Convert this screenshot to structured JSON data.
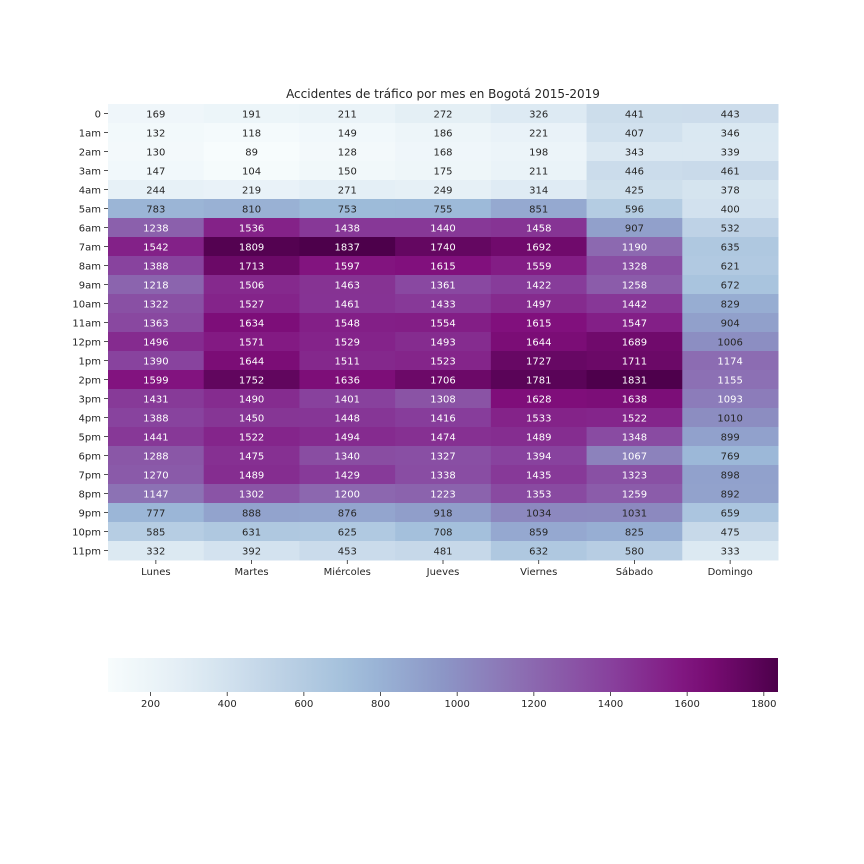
{
  "chart_data": {
    "type": "heatmap",
    "title": "Accidentes de tráfico por mes en Bogotá 2015-2019",
    "xlabel": "",
    "ylabel": "",
    "x_categories": [
      "Lunes",
      "Martes",
      "Miércoles",
      "Jueves",
      "Viernes",
      "Sábado",
      "Domingo"
    ],
    "y_categories": [
      "0",
      "1am",
      "2am",
      "3am",
      "4am",
      "5am",
      "6am",
      "7am",
      "8am",
      "9am",
      "10am",
      "11am",
      "12pm",
      "1pm",
      "2pm",
      "3pm",
      "4pm",
      "5pm",
      "6pm",
      "7pm",
      "8pm",
      "9pm",
      "10pm",
      "11pm"
    ],
    "values": [
      [
        169,
        191,
        211,
        272,
        326,
        441,
        443
      ],
      [
        132,
        118,
        149,
        186,
        221,
        407,
        346
      ],
      [
        130,
        89,
        128,
        168,
        198,
        343,
        339
      ],
      [
        147,
        104,
        150,
        175,
        211,
        446,
        461
      ],
      [
        244,
        219,
        271,
        249,
        314,
        425,
        378
      ],
      [
        783,
        810,
        753,
        755,
        851,
        596,
        400
      ],
      [
        1238,
        1536,
        1438,
        1440,
        1458,
        907,
        532
      ],
      [
        1542,
        1809,
        1837,
        1740,
        1692,
        1190,
        635
      ],
      [
        1388,
        1713,
        1597,
        1615,
        1559,
        1328,
        621
      ],
      [
        1218,
        1506,
        1463,
        1361,
        1422,
        1258,
        672
      ],
      [
        1322,
        1527,
        1461,
        1433,
        1497,
        1442,
        829
      ],
      [
        1363,
        1634,
        1548,
        1554,
        1615,
        1547,
        904
      ],
      [
        1496,
        1571,
        1529,
        1493,
        1644,
        1689,
        1006
      ],
      [
        1390,
        1644,
        1511,
        1523,
        1727,
        1711,
        1174
      ],
      [
        1599,
        1752,
        1636,
        1706,
        1781,
        1831,
        1155
      ],
      [
        1431,
        1490,
        1401,
        1308,
        1628,
        1638,
        1093
      ],
      [
        1388,
        1450,
        1448,
        1416,
        1533,
        1522,
        1010
      ],
      [
        1441,
        1522,
        1494,
        1474,
        1489,
        1348,
        899
      ],
      [
        1288,
        1475,
        1340,
        1327,
        1394,
        1067,
        769
      ],
      [
        1270,
        1489,
        1429,
        1338,
        1435,
        1323,
        898
      ],
      [
        1147,
        1302,
        1200,
        1223,
        1353,
        1259,
        892
      ],
      [
        777,
        888,
        876,
        918,
        1034,
        1031,
        659
      ],
      [
        585,
        631,
        625,
        708,
        859,
        825,
        475
      ],
      [
        332,
        392,
        453,
        481,
        632,
        580,
        333
      ]
    ],
    "colormap": "BuPu",
    "colorbar": {
      "range": [
        89,
        1837
      ],
      "ticks": [
        200,
        400,
        600,
        800,
        1000,
        1200,
        1400,
        1600,
        1800
      ],
      "orientation": "horizontal",
      "placement": "bottom"
    },
    "annotations": true,
    "grid": false
  }
}
